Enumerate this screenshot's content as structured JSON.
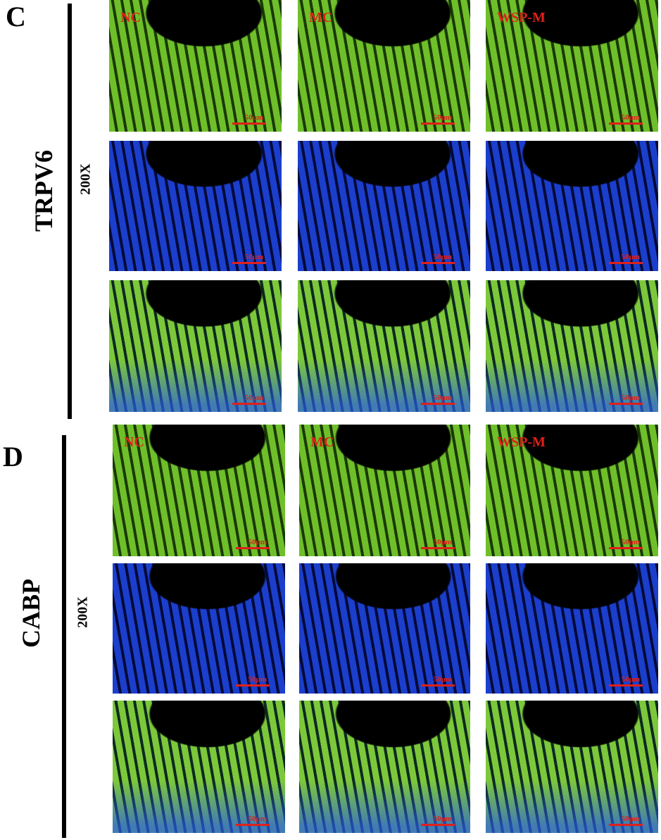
{
  "panels": [
    {
      "letter": "C",
      "marker": "TRPV6",
      "magnification": "200X",
      "columns": [
        "NC",
        "MC",
        "WSP-M"
      ],
      "scale_bar": "50μm"
    },
    {
      "letter": "D",
      "marker": "CABP",
      "magnification": "200X",
      "columns": [
        "NC",
        "MC",
        "WSP-M"
      ],
      "scale_bar": "50μm"
    }
  ]
}
